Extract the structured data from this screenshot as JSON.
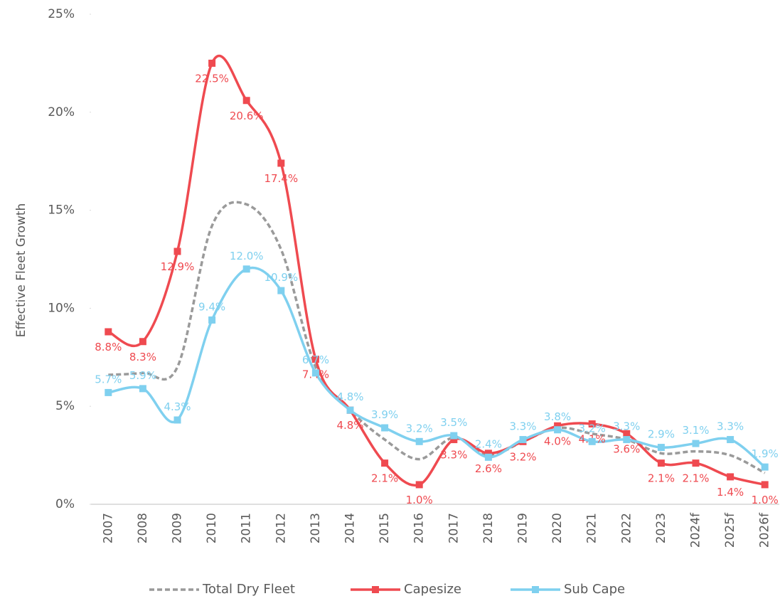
{
  "chart_data": {
    "type": "line",
    "y_label": "Effective Fleet Growth",
    "categories": [
      "2007",
      "2008",
      "2009",
      "2010",
      "2011",
      "2012",
      "2013",
      "2014",
      "2015",
      "2016",
      "2017",
      "2018",
      "2019",
      "2020",
      "2021",
      "2022",
      "2023",
      "2024f",
      "2025f",
      "2026f"
    ],
    "ylim": [
      0,
      25
    ],
    "yticks": [
      {
        "value": 0,
        "label": "0%"
      },
      {
        "value": 5,
        "label": "5%"
      },
      {
        "value": 10,
        "label": "10%"
      },
      {
        "value": 15,
        "label": "15%"
      },
      {
        "value": 20,
        "label": "20%"
      },
      {
        "value": 25,
        "label": "25%"
      }
    ],
    "legend": "bottom",
    "series": [
      {
        "name": "Total Dry Fleet",
        "color": "#9a9a9a",
        "dashed": true,
        "values": [
          6.6,
          6.7,
          7.0,
          14.2,
          15.3,
          13.0,
          7.0,
          4.8,
          3.3,
          2.3,
          3.4,
          2.5,
          3.2,
          3.9,
          3.6,
          3.3,
          2.6,
          2.7,
          2.5,
          1.6
        ]
      },
      {
        "name": "Capesize",
        "color": "#ef4a50",
        "markers": true,
        "values": [
          8.8,
          8.3,
          12.9,
          22.5,
          20.6,
          17.4,
          7.4,
          4.8,
          2.1,
          1.0,
          3.3,
          2.6,
          3.2,
          4.0,
          4.1,
          3.6,
          2.1,
          2.1,
          1.4,
          1.0
        ],
        "value_labels": [
          "8.8%",
          "8.3%",
          "12.9%",
          "22.5%",
          "20.6%",
          "17.4%",
          "7.4%",
          "4.8%",
          "2.1%",
          "1.0%",
          "3.3%",
          "2.6%",
          "3.2%",
          "4.0%",
          "4.1%",
          "3.6%",
          "2.1%",
          "2.1%",
          "1.4%",
          "1.0%"
        ]
      },
      {
        "name": "Sub Cape",
        "color": "#7fd0ef",
        "markers": true,
        "values": [
          5.7,
          5.9,
          4.3,
          9.4,
          12.0,
          10.9,
          6.7,
          4.8,
          3.9,
          3.2,
          3.5,
          2.4,
          3.3,
          3.8,
          3.2,
          3.3,
          2.9,
          3.1,
          3.3,
          1.9
        ],
        "value_labels": [
          "5.7%",
          "5.9%",
          "4.3%",
          "9.4%",
          "12.0%",
          "10.9%",
          "6.7%",
          "4.8%",
          "3.9%",
          "3.2%",
          "3.5%",
          "2.4%",
          "3.3%",
          "3.8%",
          "3.2%",
          "3.3%",
          "2.9%",
          "3.1%",
          "3.3%",
          "1.9%"
        ]
      }
    ]
  }
}
